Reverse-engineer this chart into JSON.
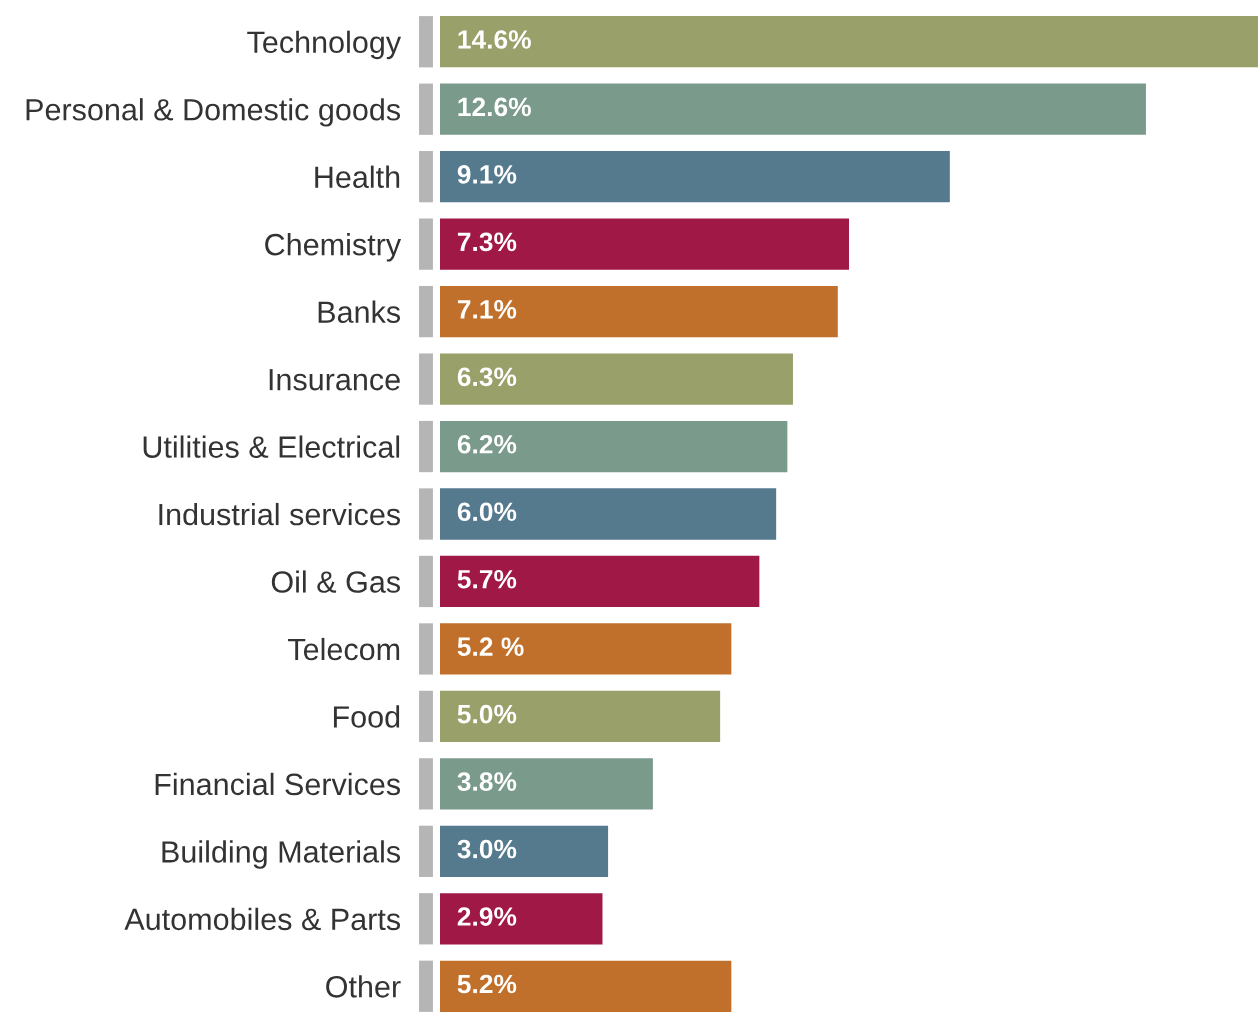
{
  "chart_data": {
    "type": "bar",
    "orientation": "horizontal",
    "categories": [
      "Technology",
      "Personal & Domestic goods",
      "Health",
      "Chemistry",
      "Banks",
      "Insurance",
      "Utilities & Electrical",
      "Industrial services",
      "Oil & Gas",
      "Telecom",
      "Food",
      "Financial Services",
      "Building Materials",
      "Automobiles & Parts",
      "Other"
    ],
    "values": [
      14.6,
      12.6,
      9.1,
      7.3,
      7.1,
      6.3,
      6.2,
      6.0,
      5.7,
      5.2,
      5.0,
      3.8,
      3.0,
      2.9,
      5.2
    ],
    "value_labels": [
      "14.6%",
      "12.6%",
      "9.1%",
      "7.3%",
      "7.1%",
      "6.3%",
      "6.2%",
      "6.0%",
      "5.7%",
      "5.2 %",
      "5.0%",
      "3.8%",
      "3.0%",
      "2.9%",
      "5.2%"
    ],
    "colors": [
      "#9aa06a",
      "#7a9a8c",
      "#557a8e",
      "#a01845",
      "#c0702a",
      "#9aa06a",
      "#7a9a8c",
      "#557a8e",
      "#a01845",
      "#c0702a",
      "#9aa06a",
      "#7a9a8c",
      "#557a8e",
      "#a01845",
      "#c0702a"
    ],
    "xlim": [
      0,
      14.6
    ],
    "tick_labels": "y",
    "grid": false,
    "legend": false
  }
}
